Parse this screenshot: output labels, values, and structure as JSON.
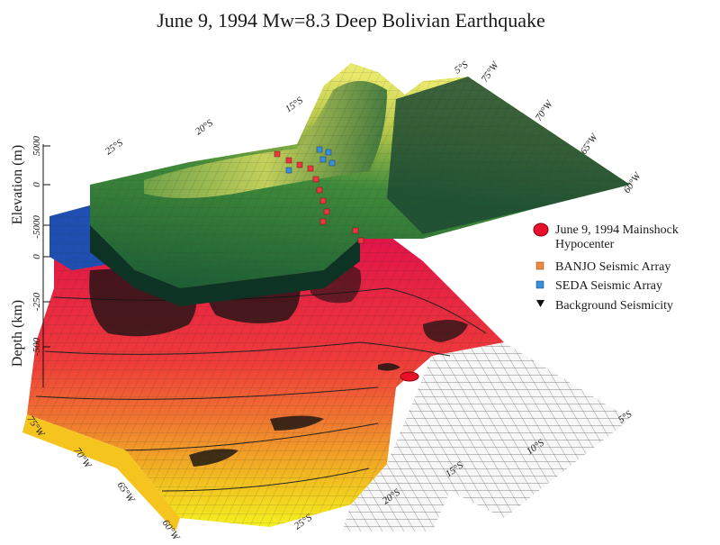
{
  "title": "June 9, 1994 Mw=8.3 Deep Bolivian Earthquake",
  "axes": {
    "elevation_label": "Elevation (m)",
    "depth_label": "Depth (km)",
    "elevation_ticks": [
      "5000",
      "0",
      "-5000"
    ],
    "depth_ticks": [
      "0",
      "-250",
      "-500"
    ],
    "top_lat_ticks": [
      "25°S",
      "20°S",
      "15°S",
      "5°S"
    ],
    "top_lon_ticks": [
      "75°W",
      "70°W",
      "65°W",
      "60°W"
    ],
    "bottom_lon_ticks": [
      "75°W",
      "70°W",
      "65°W",
      "60°W"
    ],
    "bottom_lat_ticks": [
      "25°S",
      "20°S",
      "15°S",
      "10°S",
      "5°S"
    ]
  },
  "legend": {
    "items": [
      {
        "label": "June 9, 1994 Mainshock",
        "label2": "Hypocenter",
        "color": "#e8102a"
      },
      {
        "label": "BANJO Seismic Array",
        "color": "#f08a3c"
      },
      {
        "label": "SEDA Seismic Array",
        "color": "#3a8fd8"
      },
      {
        "label": "Background Seismicity",
        "color": "#111111"
      }
    ]
  },
  "colors": {
    "topo_low": "#0e3b2a",
    "topo_mid": "#2f7a3c",
    "topo_high": "#e4e26a",
    "ocean": "#1f4fb0",
    "slab_shallow": "#e0104a",
    "slab_mid": "#f07830",
    "slab_deep": "#f2ee20",
    "mesh": "#222222"
  }
}
